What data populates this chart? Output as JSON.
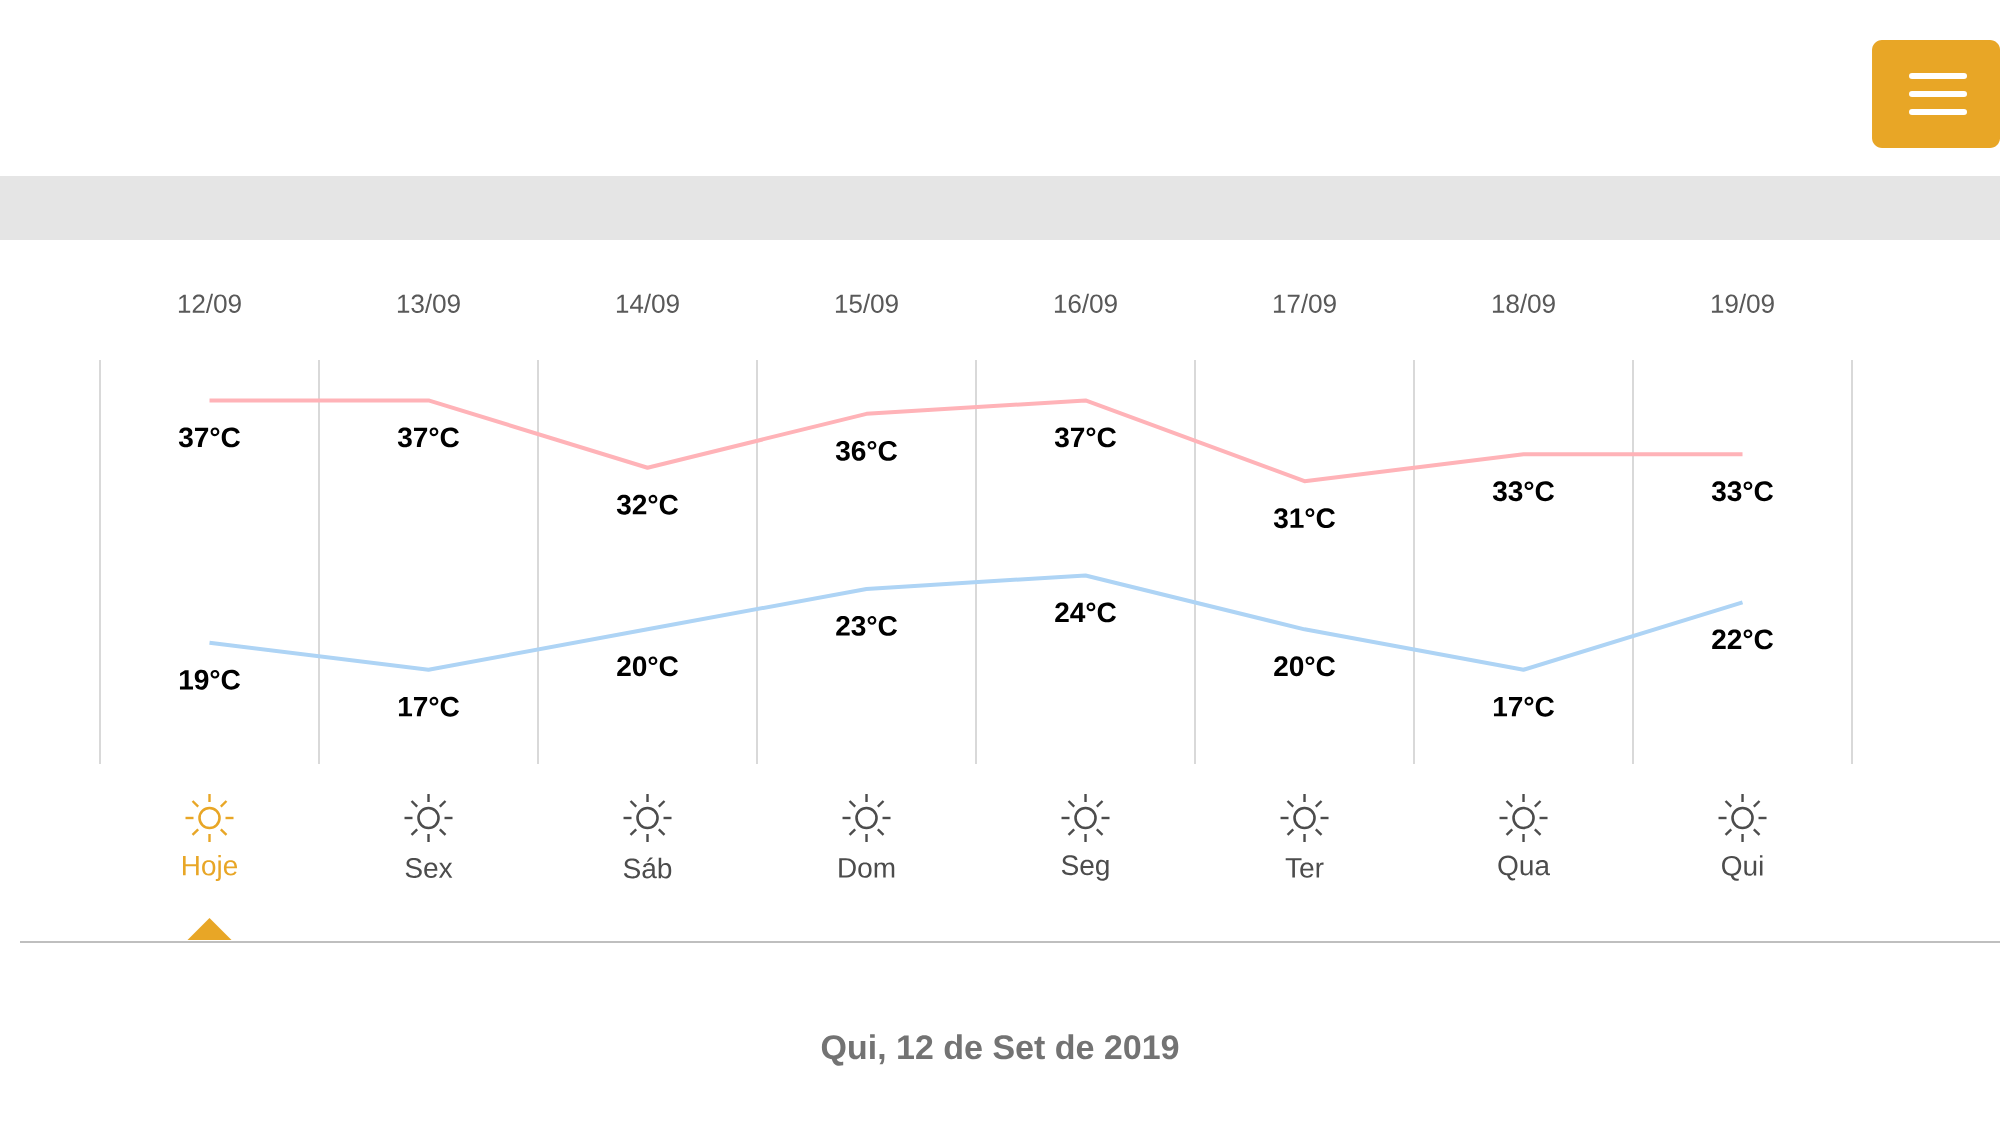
{
  "chart_data": {
    "type": "line",
    "categories": [
      "12/09",
      "13/09",
      "14/09",
      "15/09",
      "16/09",
      "17/09",
      "18/09",
      "19/09"
    ],
    "series": [
      {
        "color": "#ffb3b8",
        "values": [
          37,
          37,
          32,
          36,
          37,
          31,
          33,
          33
        ],
        "value_labels": [
          "37°C",
          "37°C",
          "32°C",
          "36°C",
          "37°C",
          "31°C",
          "33°C",
          "33°C"
        ]
      },
      {
        "color": "#aed4f5",
        "values": [
          19,
          17,
          20,
          23,
          24,
          20,
          17,
          22
        ],
        "value_labels": [
          "19°C",
          "17°C",
          "20°C",
          "23°C",
          "24°C",
          "20°C",
          "17°C",
          "22°C"
        ]
      }
    ],
    "ylim": [
      10,
      40
    ],
    "grid": "x",
    "tick_labels": "x",
    "annotations": [
      "Hoje",
      "Sex",
      "Sáb",
      "Dom",
      "Seg",
      "Ter",
      "Qua",
      "Qui",
      "Qui, 12 de Set de 2019"
    ]
  }
}
